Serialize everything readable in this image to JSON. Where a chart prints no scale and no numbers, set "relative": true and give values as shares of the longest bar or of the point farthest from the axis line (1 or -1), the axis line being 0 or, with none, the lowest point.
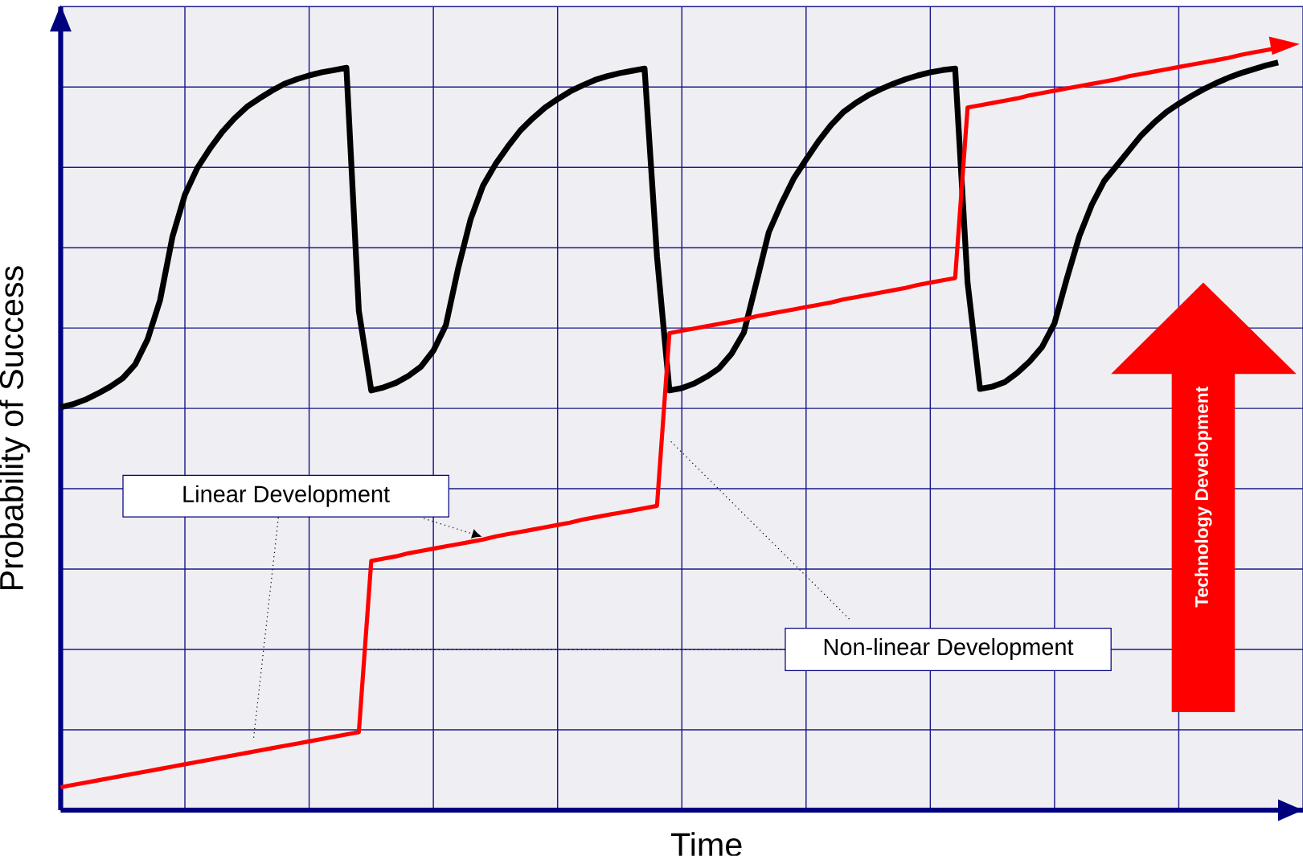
{
  "chart_data": {
    "type": "line",
    "relative": true,
    "xlabel": "Time",
    "ylabel": "Probability of Success",
    "annotations": [
      "Linear Development",
      "Non-linear Development",
      "Technology Development"
    ],
    "grid": true,
    "marker": "none",
    "line_style": "solid",
    "categories": [
      null,
      null,
      null,
      null,
      null,
      null,
      null,
      null,
      null,
      null,
      null,
      null,
      null,
      null,
      null,
      null,
      null,
      null,
      null,
      null,
      null,
      null,
      null,
      null,
      null,
      null,
      null,
      null,
      null,
      null,
      null,
      null,
      null,
      null,
      null,
      null,
      null,
      null,
      null,
      null,
      null,
      null,
      null,
      null,
      null,
      null,
      null,
      null,
      null,
      null,
      null,
      null,
      null,
      null,
      null,
      null,
      null,
      null,
      null,
      null,
      null,
      null,
      null,
      null,
      null,
      null,
      null,
      null,
      null,
      null,
      null,
      null,
      null,
      null,
      null,
      null,
      null,
      null,
      null,
      null,
      null,
      null,
      null,
      null,
      null,
      null,
      null,
      null,
      null,
      null,
      null,
      null,
      null,
      null,
      null,
      null,
      null,
      null,
      null,
      null,
      null
    ],
    "series": [
      {
        "color": "#000000",
        "values": [
          0.527,
          0.531,
          0.537,
          0.545,
          0.554,
          0.565,
          0.583,
          0.616,
          0.667,
          0.75,
          0.805,
          0.84,
          0.865,
          0.887,
          0.905,
          0.92,
          0.931,
          0.941,
          0.95,
          0.956,
          0.961,
          0.965,
          0.968,
          0.971,
          0.653,
          0.549,
          0.553,
          0.559,
          0.568,
          0.58,
          0.601,
          0.634,
          0.709,
          0.773,
          0.817,
          0.845,
          0.868,
          0.889,
          0.905,
          0.919,
          0.93,
          0.94,
          0.948,
          0.955,
          0.96,
          0.964,
          0.967,
          0.97,
          0.724,
          0.549,
          0.552,
          0.558,
          0.567,
          0.578,
          0.597,
          0.625,
          0.69,
          0.756,
          0.793,
          0.826,
          0.851,
          0.875,
          0.896,
          0.913,
          0.925,
          0.935,
          0.943,
          0.95,
          0.956,
          0.961,
          0.965,
          0.968,
          0.97,
          0.69,
          0.551,
          0.554,
          0.56,
          0.572,
          0.587,
          0.606,
          0.637,
          0.696,
          0.751,
          0.792,
          0.823,
          0.843,
          0.863,
          0.883,
          0.899,
          0.913,
          0.924,
          0.934,
          0.943,
          0.951,
          0.958,
          0.964,
          0.969,
          0.974,
          0.978,
          null,
          null
        ]
      },
      {
        "color": "#ff0000",
        "values": [
          0.03,
          0.033,
          0.036,
          0.039,
          0.042,
          0.045,
          0.048,
          0.051,
          0.054,
          0.057,
          0.06,
          0.063,
          0.066,
          0.069,
          0.072,
          0.075,
          0.078,
          0.081,
          0.084,
          0.087,
          0.09,
          0.093,
          0.096,
          0.099,
          0.102,
          0.326,
          0.329,
          0.332,
          0.336,
          0.339,
          0.342,
          0.345,
          0.348,
          0.351,
          0.354,
          0.358,
          0.361,
          0.364,
          0.367,
          0.37,
          0.373,
          0.376,
          0.38,
          0.383,
          0.386,
          0.389,
          0.392,
          0.395,
          0.398,
          0.624,
          0.627,
          0.63,
          0.633,
          0.636,
          0.639,
          0.642,
          0.646,
          0.649,
          0.652,
          0.655,
          0.658,
          0.661,
          0.664,
          0.668,
          0.671,
          0.674,
          0.677,
          0.68,
          0.683,
          0.687,
          0.69,
          0.693,
          0.696,
          0.919,
          0.922,
          0.925,
          0.928,
          0.931,
          0.935,
          0.938,
          0.941,
          0.944,
          0.947,
          0.95,
          0.953,
          0.956,
          0.96,
          0.963,
          0.966,
          0.969,
          0.972,
          0.975,
          0.978,
          0.981,
          0.984,
          0.988,
          0.991,
          0.994,
          0.997,
          1.0,
          null
        ]
      }
    ]
  }
}
